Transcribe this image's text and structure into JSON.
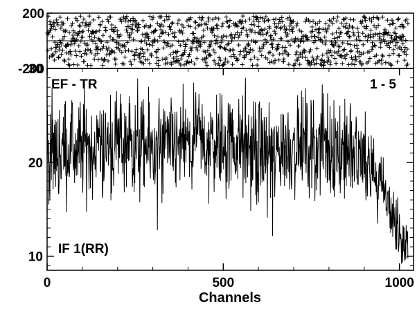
{
  "chart_data": [
    {
      "type": "scatter",
      "panel": "phase",
      "x_range": [
        0,
        1040
      ],
      "ylim": [
        -200,
        200
      ],
      "yticks": [
        {
          "value": 200,
          "label": "200"
        },
        {
          "value": -200,
          "label": "-200"
        }
      ],
      "reference_line": 0,
      "marker": "+",
      "n_points": 1024,
      "description_values": "phase values scattered uniformly between -180 and 180 across channels 1-1024"
    },
    {
      "type": "line",
      "panel": "amplitude",
      "xlabel": "Channels",
      "xlim": [
        0,
        1040
      ],
      "ylim": [
        8.5,
        30
      ],
      "xticks": [
        {
          "value": 0,
          "label": "0"
        },
        {
          "value": 500,
          "label": "500"
        },
        {
          "value": 1000,
          "label": "1000"
        }
      ],
      "yticks": [
        {
          "value": 10,
          "label": "10"
        },
        {
          "value": 20,
          "label": "20"
        },
        {
          "value": 30,
          "label": "30"
        }
      ],
      "annotations": {
        "top_left": "EF - TR",
        "top_right": "1 - 5",
        "bottom_left": "IF 1(RR)"
      },
      "n_points": 1024,
      "profile": [
        {
          "x": 0,
          "y": 21
        },
        {
          "x": 100,
          "y": 21.5
        },
        {
          "x": 200,
          "y": 21.5
        },
        {
          "x": 300,
          "y": 21.3
        },
        {
          "x": 400,
          "y": 21.8
        },
        {
          "x": 480,
          "y": 22.5
        },
        {
          "x": 560,
          "y": 21.5
        },
        {
          "x": 640,
          "y": 21
        },
        {
          "x": 700,
          "y": 21.8
        },
        {
          "x": 760,
          "y": 22
        },
        {
          "x": 820,
          "y": 21.5
        },
        {
          "x": 880,
          "y": 20.8
        },
        {
          "x": 920,
          "y": 19.5
        },
        {
          "x": 960,
          "y": 16.5
        },
        {
          "x": 1000,
          "y": 12
        },
        {
          "x": 1024,
          "y": 10.5
        }
      ],
      "noise_amplitude": 2.6
    }
  ]
}
